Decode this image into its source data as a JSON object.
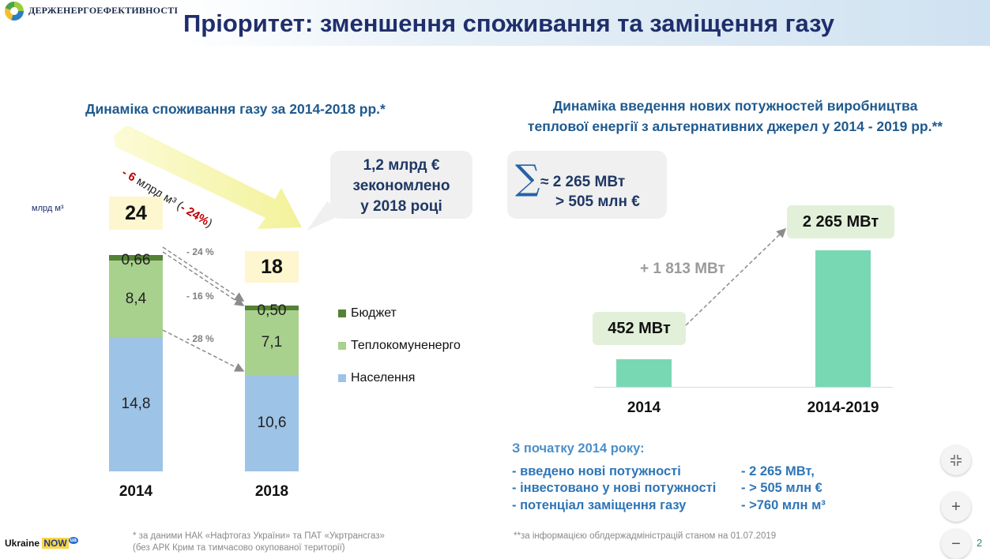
{
  "header": {
    "logo_text": "ДЕРЖЕНЕРГОЕФЕКТИВНОСТІ",
    "title": "Пріоритет: зменшення споживання та заміщення газу"
  },
  "left_panel": {
    "title": "Динаміка споживання газу за 2014-2018 рр.*",
    "unit": "млрд м³",
    "big_arrow": {
      "change": "- 6",
      "unit_text": " млрд м³ (",
      "pct": "- 24%",
      "close": ")"
    },
    "savings_lines": [
      "1,2 млрд €",
      "зекономлено",
      "у 2018 році"
    ],
    "pct_labels": [
      "- 24 %",
      "- 16 %",
      "- 28 %"
    ]
  },
  "right_panel": {
    "title_line1": "Динаміка введення нових потужностей виробництва",
    "title_line2": "теплової енергії з альтернативних джерел у 2014 - 2019 рр.**",
    "sum_symbol": "∑",
    "sum_line1": "≈ 2 265 МВт",
    "sum_line2": "> 505 млн €",
    "increase_label": "+ 1 813 МВт",
    "since": {
      "title": "З початку 2014 року:",
      "items": [
        {
          "label": "- введено нові потужності",
          "value": "-  2 265 МВт,"
        },
        {
          "label": "- інвестовано у нові потужності",
          "value": "- > 505 млн €"
        },
        {
          "label": "- потенціал заміщення газу",
          "value": "-  >760 млн м³"
        }
      ]
    }
  },
  "footnotes": {
    "left_line1": "* за  даними НАК «Нафтогаз України»  та ПАТ «Укртрансгаз»",
    "left_line2": "(без АРК Крим та тимчасово окупованої території)",
    "right": "**за  інформацією облдержадміністрацій станом на 01.07.2019"
  },
  "branding": {
    "ukraine": "Ukraine",
    "now": "NOW",
    "ua": "ua"
  },
  "page_number": "2",
  "controls": {
    "collapse_icon": "collapse-icon",
    "zoom_in": "+",
    "zoom_out": "−"
  },
  "colors": {
    "budget": "#548235",
    "heat": "#a9d18e",
    "population": "#9dc3e6",
    "alt_bar": "#79d8b4",
    "title": "#1f2e6b"
  },
  "chart_data": [
    {
      "type": "bar",
      "stacked": true,
      "title": "Динаміка споживання газу за 2014-2018 рр.*",
      "ylabel": "млрд м³",
      "categories": [
        "2014",
        "2018"
      ],
      "totals": [
        "24",
        "18"
      ],
      "series": [
        {
          "name": "Населення",
          "values": [
            14.8,
            10.6
          ],
          "labels": [
            "14,8",
            "10,6"
          ],
          "color": "#9dc3e6"
        },
        {
          "name": "Теплокомуненерго",
          "values": [
            8.4,
            7.1
          ],
          "labels": [
            "8,4",
            "7,1"
          ],
          "color": "#a9d18e"
        },
        {
          "name": "Бюджет",
          "values": [
            0.66,
            0.5
          ],
          "labels": [
            "0,66",
            "0,50"
          ],
          "color": "#548235"
        }
      ],
      "legend": "right"
    },
    {
      "type": "bar",
      "title": "Динаміка введення нових потужностей виробництва теплової енергії з альтернативних джерел у 2014 - 2019 рр.**",
      "categories": [
        "2014",
        "2014-2019"
      ],
      "values": [
        452,
        2265
      ],
      "labels": [
        "452 МВт",
        "2 265 МВт"
      ],
      "color": "#79d8b4"
    }
  ]
}
